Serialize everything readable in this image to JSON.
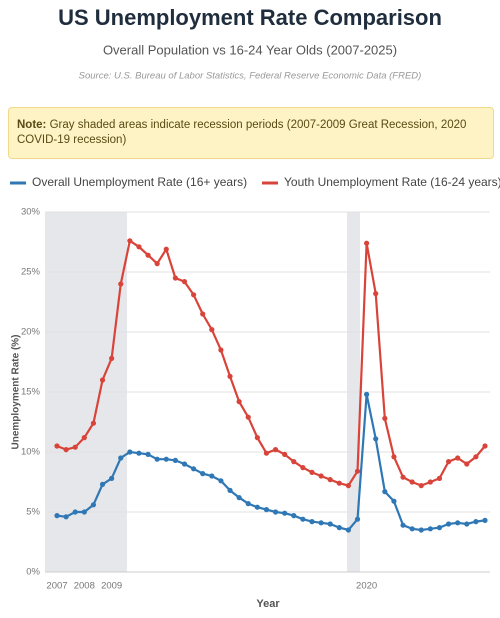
{
  "header": {
    "title": "US Unemployment Rate Comparison",
    "subtitle": "Overall Population vs 16-24 Year Olds (2007-2025)",
    "source": "Source: U.S. Bureau of Labor Statistics, Federal Reserve Economic Data (FRED)"
  },
  "note": {
    "label": "Note:",
    "text": "Gray shaded areas indicate recession periods (2007-2009 Great Recession, 2020 COVID-19 recession)"
  },
  "chart_data": {
    "type": "line",
    "x_label": "Year",
    "y_label": "Unemployment Rate (%)",
    "categories": [
      "2007",
      null,
      null,
      "2008",
      null,
      null,
      "2009",
      null,
      null,
      null,
      null,
      null,
      null,
      null,
      null,
      null,
      null,
      null,
      null,
      null,
      null,
      null,
      null,
      null,
      null,
      null,
      null,
      null,
      null,
      null,
      null,
      null,
      null,
      null,
      "2020",
      null,
      null,
      null,
      null,
      null,
      null,
      null,
      null,
      null,
      null,
      null,
      null,
      null
    ],
    "series": [
      {
        "name": "Overall Unemployment Rate (16+ years)",
        "color": "#2f78b5",
        "values": [
          4.7,
          4.6,
          5.0,
          5.0,
          5.6,
          7.3,
          7.8,
          9.5,
          10.0,
          9.9,
          9.8,
          9.4,
          9.4,
          9.3,
          9.0,
          8.6,
          8.2,
          8.0,
          7.6,
          6.8,
          6.2,
          5.7,
          5.4,
          5.2,
          5.0,
          4.9,
          4.7,
          4.4,
          4.2,
          4.1,
          4.0,
          3.7,
          3.5,
          4.4,
          14.8,
          11.1,
          6.7,
          5.9,
          3.9,
          3.6,
          3.5,
          3.6,
          3.7,
          4.0,
          4.1,
          4.0,
          4.2,
          4.3
        ]
      },
      {
        "name": "Youth Unemployment Rate (16-24 years)",
        "color": "#d9443a",
        "values": [
          10.5,
          10.2,
          10.4,
          11.2,
          12.4,
          16.0,
          17.8,
          24.0,
          27.6,
          27.1,
          26.4,
          25.7,
          26.9,
          24.5,
          24.2,
          23.1,
          21.5,
          20.2,
          18.5,
          16.3,
          14.2,
          12.9,
          11.2,
          9.9,
          10.2,
          9.8,
          9.2,
          8.7,
          8.3,
          8.0,
          7.7,
          7.4,
          7.2,
          8.4,
          27.4,
          23.2,
          12.8,
          9.6,
          7.9,
          7.5,
          7.2,
          7.5,
          7.8,
          9.2,
          9.5,
          9.0,
          9.6,
          10.5
        ]
      }
    ],
    "ylim": [
      0,
      30
    ],
    "yticks": [
      {
        "value": 0,
        "label": "0%"
      },
      {
        "value": 5,
        "label": "5%"
      },
      {
        "value": 10,
        "label": "10%"
      },
      {
        "value": 15,
        "label": "15%"
      },
      {
        "value": 20,
        "label": "20%"
      },
      {
        "value": 25,
        "label": "25%"
      },
      {
        "value": 30,
        "label": "30%"
      }
    ],
    "grid": true,
    "legend": "top"
  }
}
